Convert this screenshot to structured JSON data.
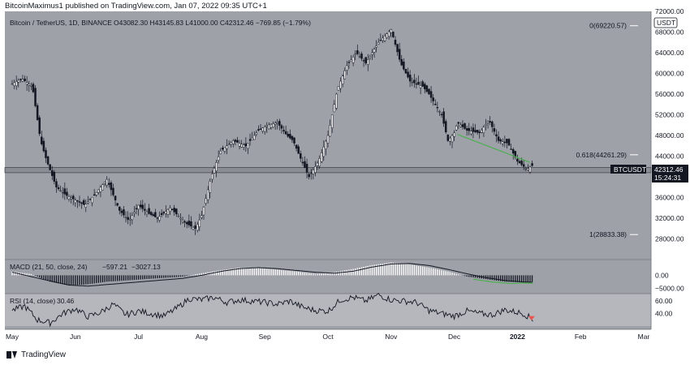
{
  "header": {
    "publisher_line": "BitcoinMaximus1 published on TradingView.com, Jan 07, 2022 09:35 UTC+1"
  },
  "footer": {
    "brand": "TradingView"
  },
  "colors": {
    "background": "#9ea1a8",
    "candle": "#131722",
    "support": "#4caf50",
    "rsi_marker": "#ef5350"
  },
  "chart_data": {
    "type": "candlestick",
    "title": "Bitcoin / TetherUS, 1D, BINANCE",
    "ohlc_label": "O43082.30 H43145.83 L41000.00 C42312.46 −769.85 (−1.79%)",
    "currency": "USDT",
    "ylim": [
      24000,
      72000
    ],
    "yticks": [
      "72000.00",
      "68000.00",
      "64000.00",
      "60000.00",
      "56000.00",
      "52000.00",
      "48000.00",
      "44000.00",
      "40000.00",
      "36000.00",
      "32000.00",
      "28000.00"
    ],
    "xlabels": [
      "May",
      "Jun",
      "Jul",
      "Aug",
      "Sep",
      "Oct",
      "Nov",
      "Dec",
      "2022",
      "Feb",
      "Mar"
    ],
    "x_months": [
      0,
      1,
      2,
      3,
      4,
      5,
      6,
      7,
      8,
      9,
      10
    ],
    "price_path_months": [
      0,
      0.15,
      0.32,
      0.45,
      0.55,
      0.7,
      0.85,
      1.0,
      1.15,
      1.3,
      1.5,
      1.7,
      1.85,
      2.0,
      2.15,
      2.3,
      2.5,
      2.6,
      2.75,
      2.9,
      3.0,
      3.15,
      3.3,
      3.5,
      3.7,
      3.9,
      4.05,
      4.2,
      4.35,
      4.45,
      4.55,
      4.7,
      4.85,
      5.0,
      5.15,
      5.3,
      5.45,
      5.6,
      5.8,
      6.0,
      6.15,
      6.3,
      6.5,
      6.6,
      6.8,
      6.9,
      7.0,
      7.05,
      7.2,
      7.4,
      7.55,
      7.7,
      7.85,
      8.0,
      8.15,
      8.25
    ],
    "price_path_values": [
      58000,
      59000,
      57500,
      47000,
      43000,
      38000,
      36500,
      35500,
      34500,
      36500,
      39500,
      33500,
      31500,
      34500,
      33000,
      32000,
      34000,
      32800,
      31000,
      30000,
      32500,
      40000,
      45000,
      47000,
      46000,
      49000,
      50000,
      50500,
      48000,
      47000,
      44000,
      40000,
      43000,
      48000,
      57000,
      61500,
      64000,
      62000,
      66000,
      68500,
      62000,
      58500,
      57500,
      56000,
      52000,
      47000,
      48500,
      50500,
      49000,
      48500,
      51000,
      47000,
      46500,
      43000,
      41500,
      42300
    ],
    "last_price_label": "42312.46",
    "countdown": "15:24:31",
    "symbol_badge": "BTCUSDT",
    "fib_levels": [
      {
        "label": "0(69220.57)",
        "value": 69220.57
      },
      {
        "label": "0.618(44261.29)",
        "value": 44261.29
      },
      {
        "label": "1(28833.38)",
        "value": 28833.38
      }
    ],
    "support_zone": [
      40800,
      41800
    ],
    "trendline": {
      "from": [
        7.05,
        48200
      ],
      "to": [
        8.2,
        42800
      ]
    },
    "macd": {
      "label": "MACD (21, 50, close, 24)",
      "value1": "−597.21",
      "value2": "−3027.13",
      "yticks": [
        "0.00",
        "−5000.00"
      ],
      "ylim": [
        -6500,
        5500
      ],
      "hist_months": [
        0.0,
        0.3,
        0.6,
        0.9,
        1.2,
        1.5,
        1.8,
        2.1,
        2.4,
        2.7,
        3.0,
        3.3,
        3.6,
        3.9,
        4.2,
        4.5,
        4.8,
        5.1,
        5.4,
        5.7,
        6.0,
        6.3,
        6.6,
        6.9,
        7.2,
        7.5,
        7.8,
        8.1,
        8.25
      ],
      "hist_values": [
        1500,
        500,
        -2500,
        -4000,
        -3500,
        -2500,
        -2000,
        -1500,
        -1000,
        -500,
        800,
        2000,
        3000,
        2800,
        2200,
        1500,
        500,
        1200,
        2500,
        4000,
        5000,
        4200,
        3000,
        1500,
        -500,
        -1500,
        -2500,
        -2800,
        -2600
      ],
      "line_values": [
        1200,
        -500,
        -2200,
        -3800,
        -4200,
        -3600,
        -3000,
        -2400,
        -1800,
        -1200,
        0,
        1500,
        2600,
        3000,
        2600,
        1900,
        1200,
        800,
        1600,
        3200,
        4400,
        4600,
        3800,
        2300,
        600,
        -900,
        -2000,
        -2600,
        -2700
      ],
      "signal_months": [
        7.3,
        7.6,
        7.9,
        8.1,
        8.25
      ],
      "signal_values": [
        -1500,
        -2600,
        -3200,
        -3000,
        -3100
      ]
    },
    "rsi": {
      "label": "RSI (14, close)",
      "value": "30.46",
      "yticks": [
        "60.00",
        "40.00"
      ],
      "ylim": [
        20,
        72
      ],
      "path_months": [
        0,
        0.2,
        0.4,
        0.6,
        0.8,
        1.0,
        1.2,
        1.4,
        1.6,
        1.8,
        2.0,
        2.2,
        2.4,
        2.6,
        2.8,
        3.0,
        3.2,
        3.4,
        3.6,
        3.8,
        4.0,
        4.2,
        4.4,
        4.6,
        4.8,
        5.0,
        5.2,
        5.4,
        5.6,
        5.8,
        6.0,
        6.2,
        6.4,
        6.6,
        6.8,
        7.0,
        7.2,
        7.4,
        7.6,
        7.8,
        8.0,
        8.1,
        8.25
      ],
      "path_values": [
        45,
        52,
        30,
        25,
        40,
        48,
        35,
        42,
        55,
        38,
        44,
        40,
        36,
        48,
        64,
        62,
        66,
        58,
        62,
        60,
        58,
        55,
        60,
        50,
        45,
        44,
        62,
        66,
        60,
        70,
        62,
        60,
        58,
        45,
        40,
        36,
        44,
        40,
        38,
        46,
        42,
        40,
        30
      ]
    }
  }
}
